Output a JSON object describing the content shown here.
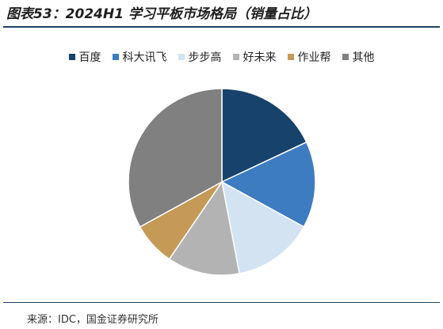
{
  "figure": {
    "title": "图表53：2024H1 学习平板市场格局（销量占比）",
    "source": "来源：IDC，国金证券研究所"
  },
  "chart_data": {
    "type": "pie",
    "title": "2024H1 学习平板市场格局（销量占比）",
    "legend_position": "top",
    "start_angle": "12 o'clock, clockwise",
    "series": [
      {
        "name": "百度",
        "value": 18.0,
        "color": "#16426b"
      },
      {
        "name": "科大讯飞",
        "value": 15.0,
        "color": "#3e7cc1"
      },
      {
        "name": "步步高",
        "value": 14.0,
        "color": "#d3e3f2"
      },
      {
        "name": "好未来",
        "value": 12.5,
        "color": "#b3b3b3"
      },
      {
        "name": "作业帮",
        "value": 7.5,
        "color": "#c49a56"
      },
      {
        "name": "其他",
        "value": 33.0,
        "color": "#808080"
      }
    ]
  }
}
